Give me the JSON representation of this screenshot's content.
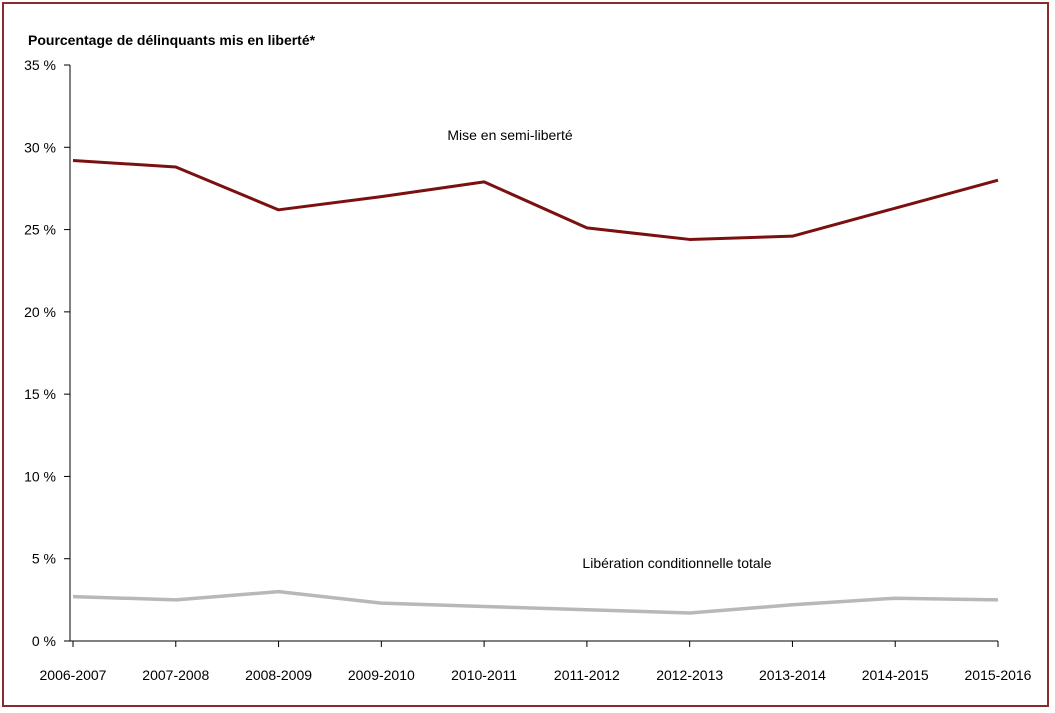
{
  "chart_data": {
    "type": "line",
    "title": "",
    "ylabel": "Pourcentage de délinquants mis en liberté*",
    "xlabel": "",
    "ylim": [
      0,
      35
    ],
    "yticks": [
      {
        "value": 0,
        "label": "0 %"
      },
      {
        "value": 5,
        "label": "5 %"
      },
      {
        "value": 10,
        "label": "10 %"
      },
      {
        "value": 15,
        "label": "15 %"
      },
      {
        "value": 20,
        "label": "20 %"
      },
      {
        "value": 25,
        "label": "25 %"
      },
      {
        "value": 30,
        "label": "30 %"
      },
      {
        "value": 35,
        "label": "35 %"
      }
    ],
    "categories": [
      "2006-2007",
      "2007-2008",
      "2008-2009",
      "2009-2010",
      "2010-2011",
      "2011-2012",
      "2012-2013",
      "2013-2014",
      "2014-2015",
      "2015-2016"
    ],
    "grid": false,
    "series": [
      {
        "name": "Mise en semi-liberté",
        "color": "#7b1010",
        "values": [
          29.2,
          28.8,
          26.2,
          27.0,
          27.9,
          25.1,
          24.4,
          24.6,
          26.3,
          28.0
        ]
      },
      {
        "name": "Libération conditionnelle totale",
        "color": "#b8b8b8",
        "values": [
          2.7,
          2.5,
          3.0,
          2.3,
          2.1,
          1.9,
          1.7,
          2.2,
          2.6,
          2.5
        ]
      }
    ]
  }
}
